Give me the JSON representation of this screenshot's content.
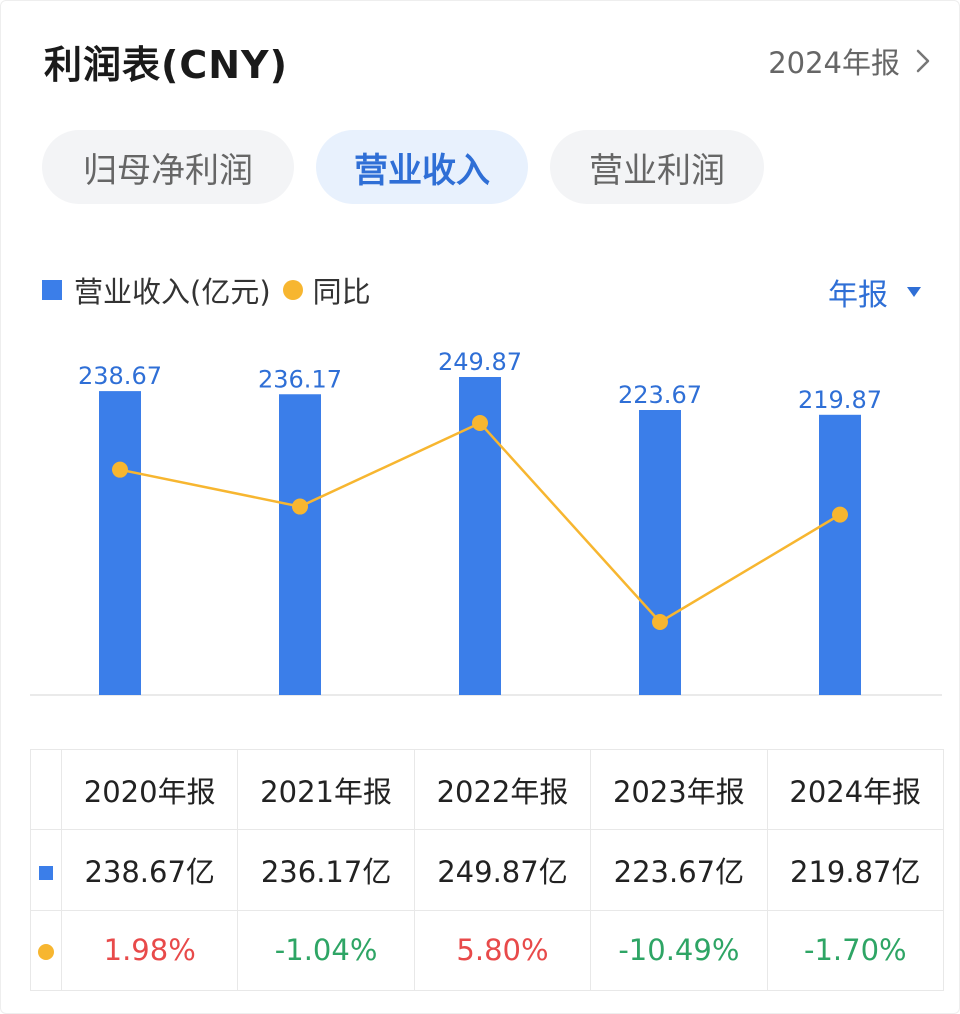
{
  "header": {
    "title": "利润表(CNY)",
    "period_label": "2024年报"
  },
  "tabs": [
    {
      "label": "归母净利润",
      "active": false
    },
    {
      "label": "营业收入",
      "active": true
    },
    {
      "label": "营业利润",
      "active": false
    }
  ],
  "legend": {
    "bar_label": "营业收入(亿元)",
    "line_label": "同比",
    "period_selector": "年报"
  },
  "colors": {
    "bar": "#3b7ee9",
    "line": "#f7b630",
    "accent": "#2f6fd6",
    "positive": "#e84a4a",
    "negative": "#2ea565"
  },
  "chart_data": {
    "type": "bar",
    "categories": [
      "2020年报",
      "2021年报",
      "2022年报",
      "2023年报",
      "2024年报"
    ],
    "series": [
      {
        "name": "营业收入(亿元)",
        "type": "bar",
        "values": [
          238.67,
          236.17,
          249.87,
          223.67,
          219.87
        ]
      },
      {
        "name": "同比",
        "type": "line",
        "values": [
          1.98,
          -1.04,
          5.8,
          -10.49,
          -1.7
        ],
        "unit": "%"
      }
    ],
    "data_labels": [
      "238.67",
      "236.17",
      "249.87",
      "223.67",
      "219.87"
    ]
  },
  "table": {
    "years": [
      "2020年报",
      "2021年报",
      "2022年报",
      "2023年报",
      "2024年报"
    ],
    "revenue": [
      "238.67亿",
      "236.17亿",
      "249.87亿",
      "223.67亿",
      "219.87亿"
    ],
    "yoy": [
      "1.98%",
      "-1.04%",
      "5.80%",
      "-10.49%",
      "-1.70%"
    ]
  }
}
